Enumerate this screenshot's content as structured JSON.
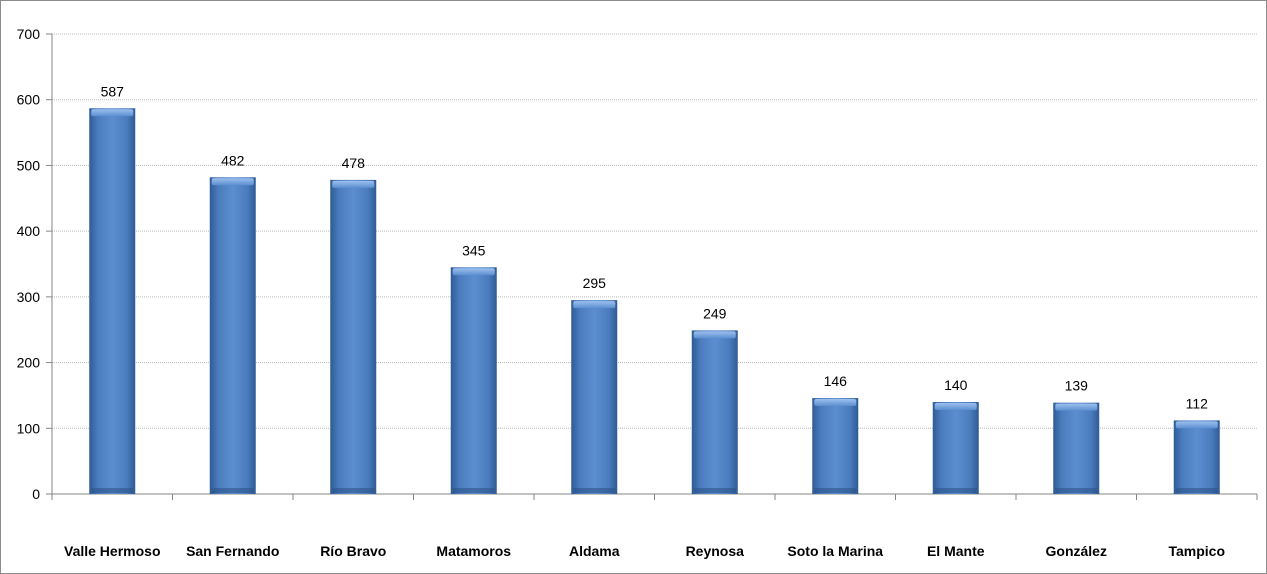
{
  "chart_data": {
    "type": "bar",
    "categories": [
      "Valle Hermoso",
      "San Fernando",
      "Río Bravo",
      "Matamoros",
      "Aldama",
      "Reynosa",
      "Soto la Marina",
      "El Mante",
      "González",
      "Tampico"
    ],
    "values": [
      587,
      482,
      478,
      345,
      295,
      249,
      146,
      140,
      139,
      112
    ],
    "title": "",
    "xlabel": "",
    "ylabel": "",
    "ylim": [
      0,
      700
    ],
    "yticks": [
      0,
      100,
      200,
      300,
      400,
      500,
      600,
      700
    ],
    "grid": true,
    "data_labels": true,
    "legend": "none",
    "bar_color": "#4f81bd"
  }
}
